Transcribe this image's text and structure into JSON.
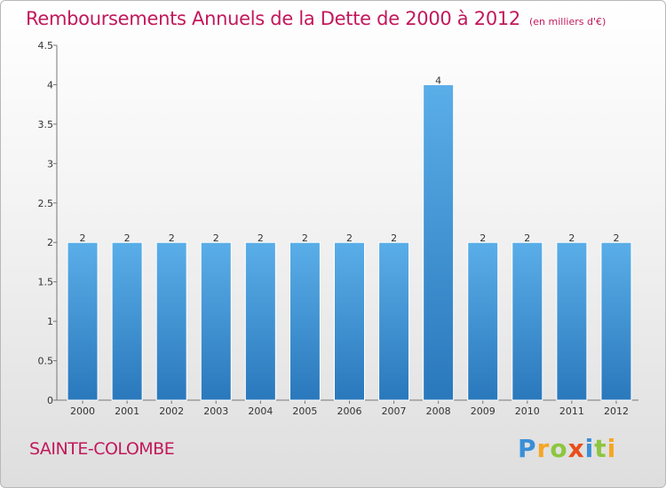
{
  "title": "Remboursements Annuels de la Dette de 2000 à 2012",
  "unit_note": "(en milliers d'€)",
  "commune": "SAINTE-COLOMBE",
  "logo": {
    "letters": [
      "P",
      "r",
      "o",
      "x",
      "i",
      "t",
      "i"
    ],
    "colors": [
      "#3a8fd6",
      "#f5a623",
      "#8cc63f",
      "#e94e1b",
      "#3a8fd6",
      "#8cc63f",
      "#f5a623"
    ]
  },
  "colors": {
    "bar_top": "#5aaee8",
    "bar_bottom": "#2a78bc",
    "title": "#c2185b"
  },
  "chart_data": {
    "type": "bar",
    "title": "Remboursements Annuels de la Dette de 2000 à 2012",
    "categories": [
      "2000",
      "2001",
      "2002",
      "2003",
      "2004",
      "2005",
      "2006",
      "2007",
      "2008",
      "2009",
      "2010",
      "2011",
      "2012"
    ],
    "values": [
      2,
      2,
      2,
      2,
      2,
      2,
      2,
      2,
      4,
      2,
      2,
      2,
      2
    ],
    "data_labels": [
      "2",
      "2",
      "2",
      "2",
      "2",
      "2",
      "2",
      "2",
      "4",
      "2",
      "2",
      "2",
      "2"
    ],
    "yticks": [
      "0",
      "0.5",
      "1",
      "1.5",
      "2",
      "2.5",
      "3",
      "3.5",
      "4",
      "4.5"
    ],
    "ytick_values": [
      0,
      0.5,
      1,
      1.5,
      2,
      2.5,
      3,
      3.5,
      4,
      4.5
    ],
    "ylim": [
      0,
      4.5
    ],
    "xlabel": "",
    "ylabel": "",
    "grid": false
  }
}
